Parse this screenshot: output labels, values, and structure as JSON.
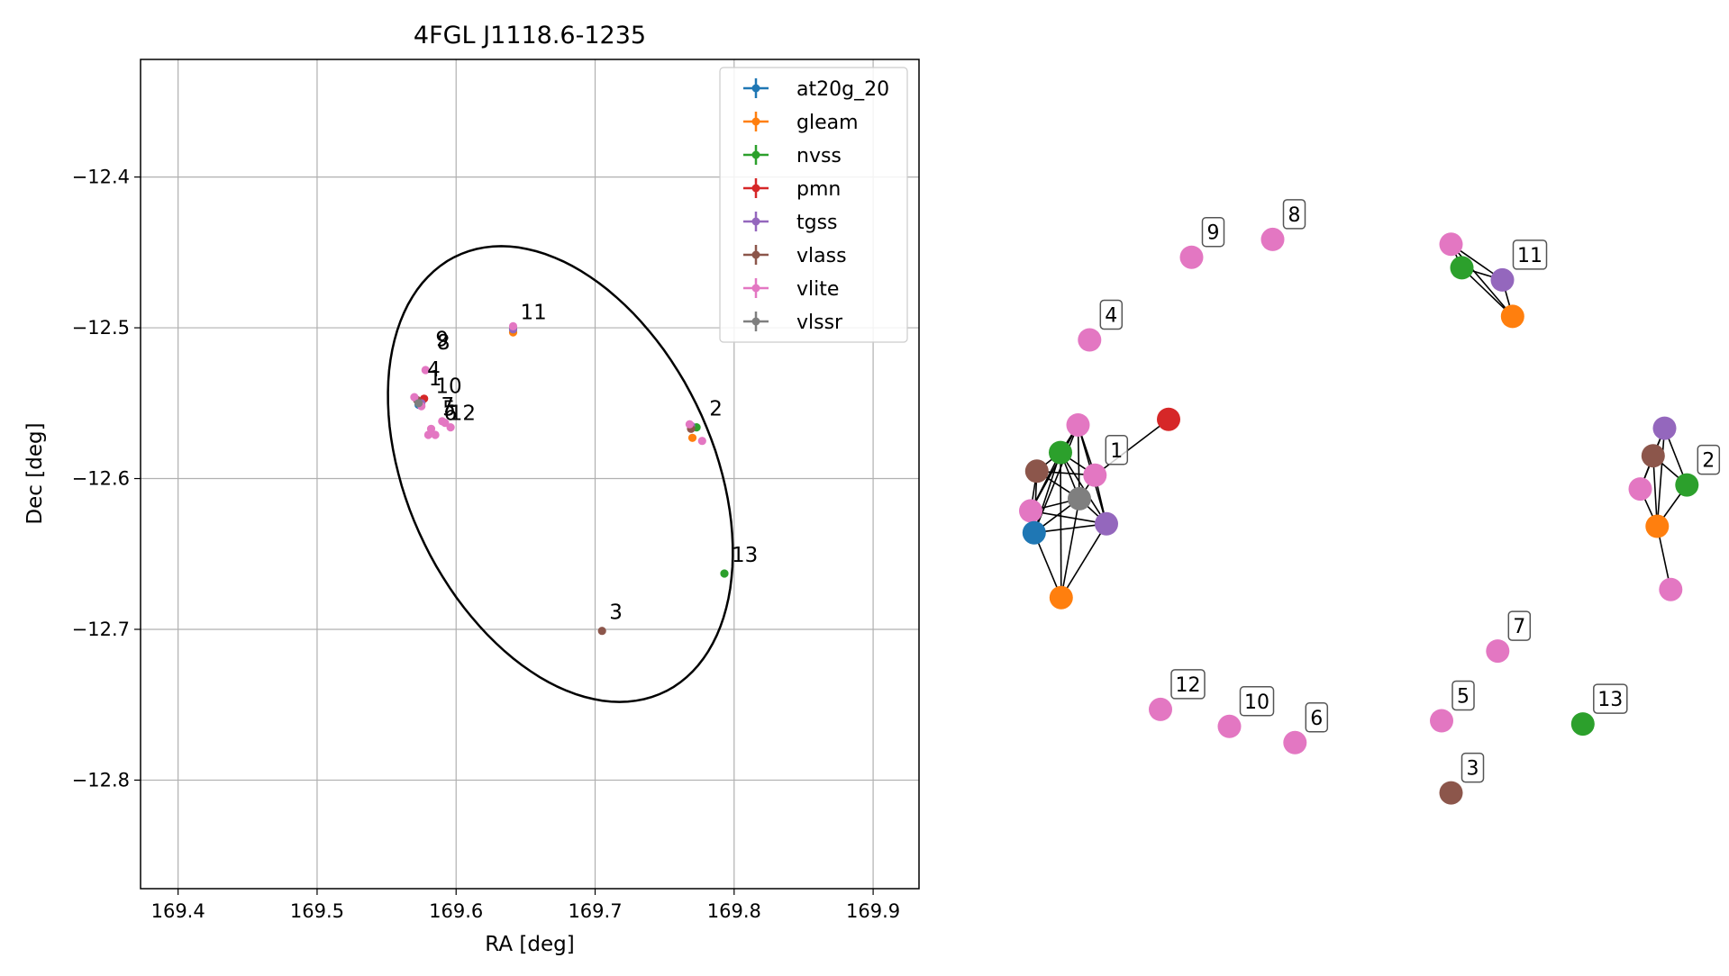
{
  "chart_data": [
    {
      "type": "scatter",
      "title": "4FGL J1118.6-1235",
      "xlabel": "RA [deg]",
      "ylabel": "Dec [deg]",
      "xlim": [
        169.373,
        169.933
      ],
      "ylim": [
        -12.872,
        -12.322
      ],
      "xticks": [
        169.4,
        169.5,
        169.6,
        169.7,
        169.8,
        169.9
      ],
      "xtick_labels": [
        "169.4",
        "169.5",
        "169.6",
        "169.7",
        "169.8",
        "169.9"
      ],
      "yticks": [
        -12.4,
        -12.5,
        -12.6,
        -12.7,
        -12.8
      ],
      "ytick_labels": [
        "−12.4",
        "−12.5",
        "−12.6",
        "−12.7",
        "−12.8"
      ],
      "grid": true,
      "legend_position": "top-right",
      "ellipse": {
        "center": [
          169.675,
          -12.597
        ],
        "semi_axes": [
          0.108,
          0.163
        ],
        "angle_deg": 30
      },
      "series": [
        {
          "name": "at20g_20",
          "color": "#1f77b4",
          "points": [
            [
              169.573,
              -12.551
            ]
          ]
        },
        {
          "name": "gleam",
          "color": "#ff7f0e",
          "points": [
            [
              169.641,
              -12.503
            ],
            [
              169.77,
              -12.573
            ]
          ]
        },
        {
          "name": "nvss",
          "color": "#2ca02c",
          "points": [
            [
              169.574,
              -12.549
            ],
            [
              169.641,
              -12.501
            ],
            [
              169.773,
              -12.566
            ],
            [
              169.793,
              -12.663
            ]
          ]
        },
        {
          "name": "pmn",
          "color": "#d62728",
          "points": [
            [
              169.577,
              -12.547
            ]
          ]
        },
        {
          "name": "tgss",
          "color": "#9467bd",
          "points": [
            [
              169.575,
              -12.55
            ],
            [
              169.641,
              -12.501
            ],
            [
              169.769,
              -12.565
            ]
          ]
        },
        {
          "name": "vlass",
          "color": "#8c564b",
          "points": [
            [
              169.572,
              -12.548
            ],
            [
              169.769,
              -12.567
            ],
            [
              169.705,
              -12.701
            ]
          ]
        },
        {
          "name": "vlite",
          "color": "#e377c2",
          "points": [
            [
              169.57,
              -12.546
            ],
            [
              169.575,
              -12.552
            ],
            [
              169.578,
              -12.528
            ],
            [
              169.582,
              -12.567
            ],
            [
              169.58,
              -12.571
            ],
            [
              169.585,
              -12.571
            ],
            [
              169.59,
              -12.562
            ],
            [
              169.592,
              -12.563
            ],
            [
              169.596,
              -12.566
            ],
            [
              169.641,
              -12.499
            ],
            [
              169.768,
              -12.564
            ],
            [
              169.777,
              -12.575
            ]
          ]
        },
        {
          "name": "vlssr",
          "color": "#7f7f7f",
          "points": [
            [
              169.573,
              -12.55
            ]
          ]
        }
      ],
      "labels": [
        {
          "text": "11",
          "x": 169.641,
          "y": -12.499
        },
        {
          "text": "9",
          "x": 169.58,
          "y": -12.517
        },
        {
          "text": "8",
          "x": 169.581,
          "y": -12.519
        },
        {
          "text": "4",
          "x": 169.574,
          "y": -12.537
        },
        {
          "text": "1",
          "x": 169.575,
          "y": -12.543
        },
        {
          "text": "10",
          "x": 169.58,
          "y": -12.548
        },
        {
          "text": "7",
          "x": 169.584,
          "y": -12.561
        },
        {
          "text": "5",
          "x": 169.585,
          "y": -12.563
        },
        {
          "text": "6",
          "x": 169.586,
          "y": -12.566
        },
        {
          "text": "12",
          "x": 169.59,
          "y": -12.566
        },
        {
          "text": "2",
          "x": 169.777,
          "y": -12.563
        },
        {
          "text": "13",
          "x": 169.793,
          "y": -12.66
        },
        {
          "text": "3",
          "x": 169.705,
          "y": -12.698
        }
      ]
    },
    {
      "type": "network",
      "nodes": [
        {
          "id": "c1_gray",
          "color": "#7f7f7f",
          "x": 0.084,
          "y": 0.471
        },
        {
          "id": "c1_pink_a",
          "color": "#e377c2",
          "x": 0.082,
          "y": 0.38
        },
        {
          "id": "c1_green",
          "color": "#2ca02c",
          "x": 0.056,
          "y": 0.414
        },
        {
          "id": "c1_brown",
          "color": "#8c564b",
          "x": 0.021,
          "y": 0.437
        },
        {
          "id": "c1_pink_b",
          "color": "#e377c2",
          "x": 0.107,
          "y": 0.442
        },
        {
          "id": "c1_pink_c",
          "color": "#e377c2",
          "x": 0.012,
          "y": 0.486
        },
        {
          "id": "c1_blue",
          "color": "#1f77b4",
          "x": 0.017,
          "y": 0.513
        },
        {
          "id": "c1_purple",
          "color": "#9467bd",
          "x": 0.124,
          "y": 0.502
        },
        {
          "id": "c1_orange",
          "color": "#ff7f0e",
          "x": 0.057,
          "y": 0.593
        },
        {
          "id": "c1_red",
          "color": "#d62728",
          "x": 0.216,
          "y": 0.373
        },
        {
          "id": "c2_purple",
          "color": "#9467bd",
          "x": 0.95,
          "y": 0.384
        },
        {
          "id": "c2_brown",
          "color": "#8c564b",
          "x": 0.933,
          "y": 0.418
        },
        {
          "id": "c2_green",
          "color": "#2ca02c",
          "x": 0.983,
          "y": 0.454
        },
        {
          "id": "c2_pink_a",
          "color": "#e377c2",
          "x": 0.914,
          "y": 0.459
        },
        {
          "id": "c2_orange",
          "color": "#ff7f0e",
          "x": 0.939,
          "y": 0.505
        },
        {
          "id": "c2_pink_b",
          "color": "#e377c2",
          "x": 0.959,
          "y": 0.583
        },
        {
          "id": "c11_pink",
          "color": "#e377c2",
          "x": 0.634,
          "y": 0.157
        },
        {
          "id": "c11_green",
          "color": "#2ca02c",
          "x": 0.65,
          "y": 0.186
        },
        {
          "id": "c11_purple",
          "color": "#9467bd",
          "x": 0.71,
          "y": 0.201
        },
        {
          "id": "c11_orange",
          "color": "#ff7f0e",
          "x": 0.725,
          "y": 0.246
        },
        {
          "id": "s4",
          "color": "#e377c2",
          "x": 0.099,
          "y": 0.275
        },
        {
          "id": "s9",
          "color": "#e377c2",
          "x": 0.25,
          "y": 0.173
        },
        {
          "id": "s8",
          "color": "#e377c2",
          "x": 0.37,
          "y": 0.151
        },
        {
          "id": "s7",
          "color": "#e377c2",
          "x": 0.703,
          "y": 0.659
        },
        {
          "id": "s12",
          "color": "#e377c2",
          "x": 0.204,
          "y": 0.731
        },
        {
          "id": "s10",
          "color": "#e377c2",
          "x": 0.306,
          "y": 0.752
        },
        {
          "id": "s6",
          "color": "#e377c2",
          "x": 0.403,
          "y": 0.772
        },
        {
          "id": "s5",
          "color": "#e377c2",
          "x": 0.62,
          "y": 0.745
        },
        {
          "id": "s13",
          "color": "#2ca02c",
          "x": 0.829,
          "y": 0.749
        },
        {
          "id": "s3",
          "color": "#8c564b",
          "x": 0.634,
          "y": 0.834
        }
      ],
      "edges": [
        [
          "c1_gray",
          "c1_pink_a"
        ],
        [
          "c1_gray",
          "c1_green"
        ],
        [
          "c1_gray",
          "c1_brown"
        ],
        [
          "c1_gray",
          "c1_pink_b"
        ],
        [
          "c1_gray",
          "c1_pink_c"
        ],
        [
          "c1_gray",
          "c1_blue"
        ],
        [
          "c1_gray",
          "c1_purple"
        ],
        [
          "c1_gray",
          "c1_orange"
        ],
        [
          "c1_green",
          "c1_pink_a"
        ],
        [
          "c1_green",
          "c1_brown"
        ],
        [
          "c1_green",
          "c1_pink_b"
        ],
        [
          "c1_green",
          "c1_pink_c"
        ],
        [
          "c1_green",
          "c1_blue"
        ],
        [
          "c1_green",
          "c1_purple"
        ],
        [
          "c1_green",
          "c1_orange"
        ],
        [
          "c1_pink_a",
          "c1_pink_b"
        ],
        [
          "c1_pink_a",
          "c1_purple"
        ],
        [
          "c1_pink_a",
          "c1_blue"
        ],
        [
          "c1_pink_a",
          "c1_pink_c"
        ],
        [
          "c1_brown",
          "c1_pink_b"
        ],
        [
          "c1_brown",
          "c1_blue"
        ],
        [
          "c1_brown",
          "c1_pink_c"
        ],
        [
          "c1_pink_b",
          "c1_purple"
        ],
        [
          "c1_pink_b",
          "c1_red"
        ],
        [
          "c1_pink_c",
          "c1_blue"
        ],
        [
          "c1_pink_c",
          "c1_purple"
        ],
        [
          "c1_blue",
          "c1_purple"
        ],
        [
          "c1_blue",
          "c1_orange"
        ],
        [
          "c1_purple",
          "c1_orange"
        ],
        [
          "c2_purple",
          "c2_brown"
        ],
        [
          "c2_purple",
          "c2_green"
        ],
        [
          "c2_purple",
          "c2_pink_a"
        ],
        [
          "c2_purple",
          "c2_orange"
        ],
        [
          "c2_brown",
          "c2_green"
        ],
        [
          "c2_brown",
          "c2_pink_a"
        ],
        [
          "c2_brown",
          "c2_orange"
        ],
        [
          "c2_green",
          "c2_orange"
        ],
        [
          "c2_pink_a",
          "c2_orange"
        ],
        [
          "c2_orange",
          "c2_pink_b"
        ],
        [
          "c11_pink",
          "c11_green"
        ],
        [
          "c11_pink",
          "c11_purple"
        ],
        [
          "c11_pink",
          "c11_orange"
        ],
        [
          "c11_green",
          "c11_purple"
        ],
        [
          "c11_green",
          "c11_orange"
        ],
        [
          "c11_purple",
          "c11_orange"
        ]
      ],
      "labels": [
        {
          "text": "1",
          "node": "c1_pink_b"
        },
        {
          "text": "2",
          "node": "c2_green"
        },
        {
          "text": "11",
          "node": "c11_purple"
        },
        {
          "text": "4",
          "node": "s4"
        },
        {
          "text": "9",
          "node": "s9"
        },
        {
          "text": "8",
          "node": "s8"
        },
        {
          "text": "7",
          "node": "s7"
        },
        {
          "text": "12",
          "node": "s12"
        },
        {
          "text": "10",
          "node": "s10"
        },
        {
          "text": "6",
          "node": "s6"
        },
        {
          "text": "5",
          "node": "s5"
        },
        {
          "text": "13",
          "node": "s13"
        },
        {
          "text": "3",
          "node": "s3"
        }
      ]
    }
  ]
}
